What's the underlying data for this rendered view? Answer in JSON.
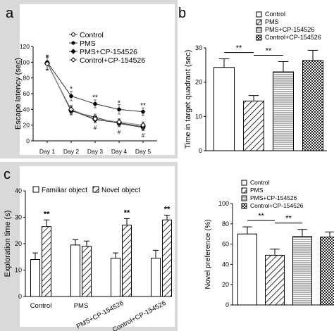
{
  "panels": [
    {
      "letter": "a",
      "chart_data": {
        "type": "line",
        "ylabel": "Escape latency (sec)",
        "xlabel": "",
        "categories": [
          "Day 1",
          "Day 2",
          "Day 3",
          "Day 4",
          "Day 5"
        ],
        "ylim": [
          0,
          120
        ],
        "yticks": [
          "0",
          "20",
          "40",
          "60",
          "80",
          "100",
          "120"
        ],
        "series": [
          {
            "name": "Control",
            "marker": "open-circle",
            "values": [
              99,
              38,
              30,
              22,
              17
            ],
            "err": [
              8,
              5,
              4,
              4,
              4
            ]
          },
          {
            "name": "PMS",
            "marker": "filled-circle",
            "values": [
              100,
              57,
              47,
              40,
              37
            ],
            "err": [
              9,
              6,
              5,
              6,
              5
            ]
          },
          {
            "name": "PMS+CP-154526",
            "marker": "filled-diamond",
            "values": [
              99,
              39,
              27,
              23,
              18
            ],
            "err": [
              9,
              5,
              4,
              4,
              4
            ]
          },
          {
            "name": "Control+CP-154526",
            "marker": "open-diamond",
            "values": [
              98,
              40,
              28,
              24,
              20
            ],
            "err": [
              8,
              5,
              4,
              4,
              4
            ]
          }
        ],
        "annotations": [
          {
            "category": "Day 2",
            "text": "*",
            "level": 66
          },
          {
            "category": "Day 3",
            "text": "**",
            "level": 55
          },
          {
            "category": "Day 4",
            "text": "*",
            "level": 48
          },
          {
            "category": "Day 5",
            "text": "**",
            "level": 45
          },
          {
            "category": "Day 3",
            "text": "#",
            "level": 17
          },
          {
            "category": "Day 4",
            "text": "#",
            "level": 11
          },
          {
            "category": "Day 5",
            "text": "#",
            "level": 7
          }
        ]
      }
    },
    {
      "letter": "b",
      "chart_data": {
        "type": "bar",
        "ylabel": "Time in target quadrant (sec)",
        "categories": [
          "Control",
          "PMS",
          "PMS+CP-154526",
          "Control+CP-154526"
        ],
        "values": [
          24.3,
          14.5,
          23.0,
          26.3
        ],
        "err": [
          2.5,
          1.6,
          3.0,
          3.0
        ],
        "ylim": [
          0,
          30
        ],
        "yticks": [
          "0",
          "10",
          "20",
          "30"
        ],
        "legend": [
          "Control",
          "PMS",
          "PMS+CP-154526",
          "Control+CP-154526"
        ],
        "annotations": [
          {
            "from": 0,
            "to": 1,
            "text": "**"
          },
          {
            "from": 1,
            "to": 2,
            "text": "**"
          }
        ]
      }
    },
    {
      "letter": "c",
      "chart_data": [
        {
          "type": "bar",
          "ylabel": "Exploration time (s)",
          "categories": [
            "Control",
            "PMS",
            "PMS+CP-154526",
            "Control+CP-154526"
          ],
          "series": [
            {
              "name": "Familiar object",
              "values": [
                14,
                19.5,
                14.5,
                14.5
              ],
              "err": [
                2.5,
                2,
                2,
                3
              ]
            },
            {
              "name": "Novel object",
              "values": [
                26.5,
                19,
                27,
                29
              ],
              "err": [
                2.5,
                2,
                2.5,
                1.8
              ]
            }
          ],
          "ylim": [
            0,
            40
          ],
          "yticks": [
            "0",
            "10",
            "20",
            "30",
            "40"
          ],
          "annotations": [
            {
              "category": "Control",
              "text": "**"
            },
            {
              "category": "PMS+CP-154526",
              "text": "**"
            },
            {
              "category": "Control+CP-154526",
              "text": "**"
            }
          ]
        },
        {
          "type": "bar",
          "ylabel": "Novel preference (%)",
          "categories": [
            "Control",
            "PMS",
            "PMS+CP-154526",
            "Control+CP-154526"
          ],
          "values": [
            70,
            49,
            67.5,
            67
          ],
          "err": [
            7,
            6,
            7,
            5
          ],
          "ylim": [
            0,
            100
          ],
          "yticks": [
            "0",
            "20",
            "40",
            "60",
            "80",
            "100"
          ],
          "legend": [
            "Control",
            "PMS",
            "PMS+CP-154526",
            "Control+CP-154526"
          ],
          "annotations": [
            {
              "from": 0,
              "to": 1,
              "text": "**"
            },
            {
              "from": 1,
              "to": 2,
              "text": "**"
            }
          ]
        }
      ]
    }
  ]
}
